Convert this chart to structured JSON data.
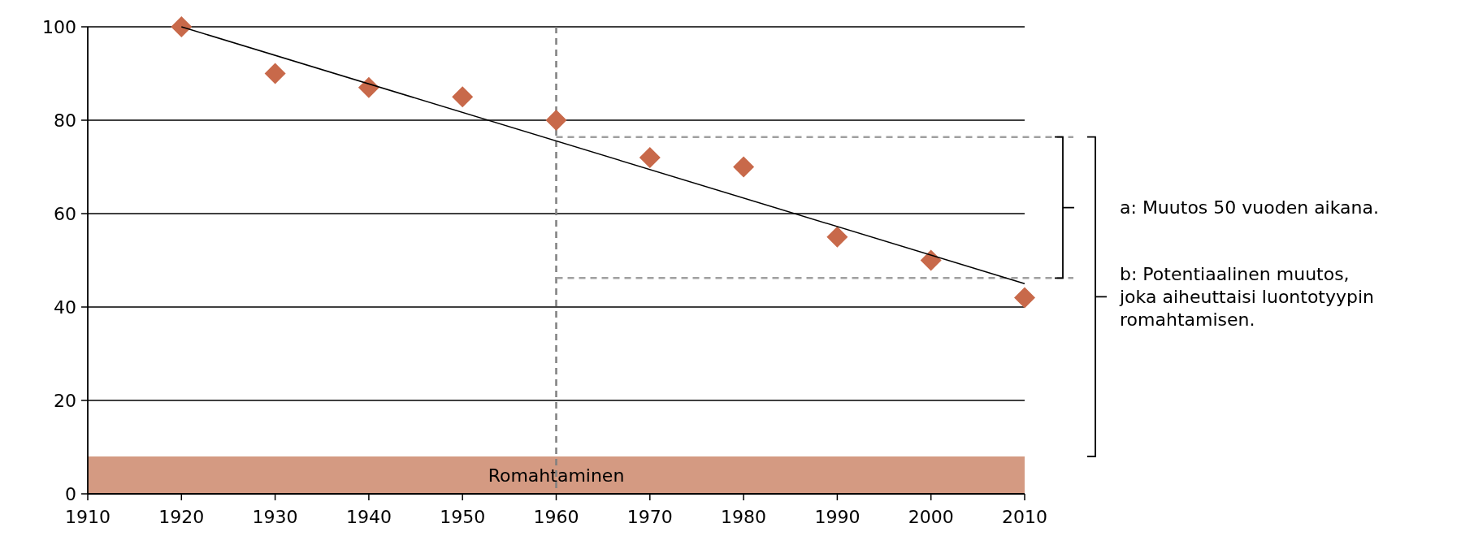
{
  "chart_data": {
    "type": "scatter",
    "x": [
      1920,
      1930,
      1940,
      1950,
      1960,
      1970,
      1980,
      1990,
      2000,
      2010
    ],
    "series": [
      {
        "color": "#c8694a",
        "values": [
          100,
          90,
          87,
          85,
          80,
          72,
          70,
          55,
          50,
          42
        ]
      },
      {
        "type": "line",
        "marker": "none",
        "color": "#000000",
        "x": [
          1920,
          2010
        ],
        "values": [
          100,
          45
        ]
      }
    ],
    "marker": "diamond",
    "xlim": [
      1910,
      2010
    ],
    "xticks": [
      1910,
      1920,
      1930,
      1940,
      1950,
      1960,
      1970,
      1980,
      1990,
      2000,
      2010
    ],
    "ylim": [
      0,
      100
    ],
    "yticks": [
      0,
      20,
      40,
      60,
      80,
      100
    ],
    "grid": "y",
    "ref_lines": [
      {
        "axis": "x",
        "value": 1960,
        "color": "#808080",
        "line_style": "dashed"
      },
      {
        "axis": "y",
        "value": 76.4,
        "color": "#a0a0a0",
        "line_style": "dashed"
      },
      {
        "axis": "y",
        "value": 46.2,
        "color": "#a0a0a0",
        "line_style": "dashed"
      }
    ],
    "bands": [
      {
        "axis": "y",
        "from": 0,
        "to": 8,
        "label": "Romahtaminen",
        "color": "#d49a82"
      }
    ],
    "annotations": [
      "a: Muutos 50 vuoden aikana.",
      "b: Potentiaalinen muutos, joka aiheuttaisi luontotyypin romahtamisen."
    ]
  }
}
